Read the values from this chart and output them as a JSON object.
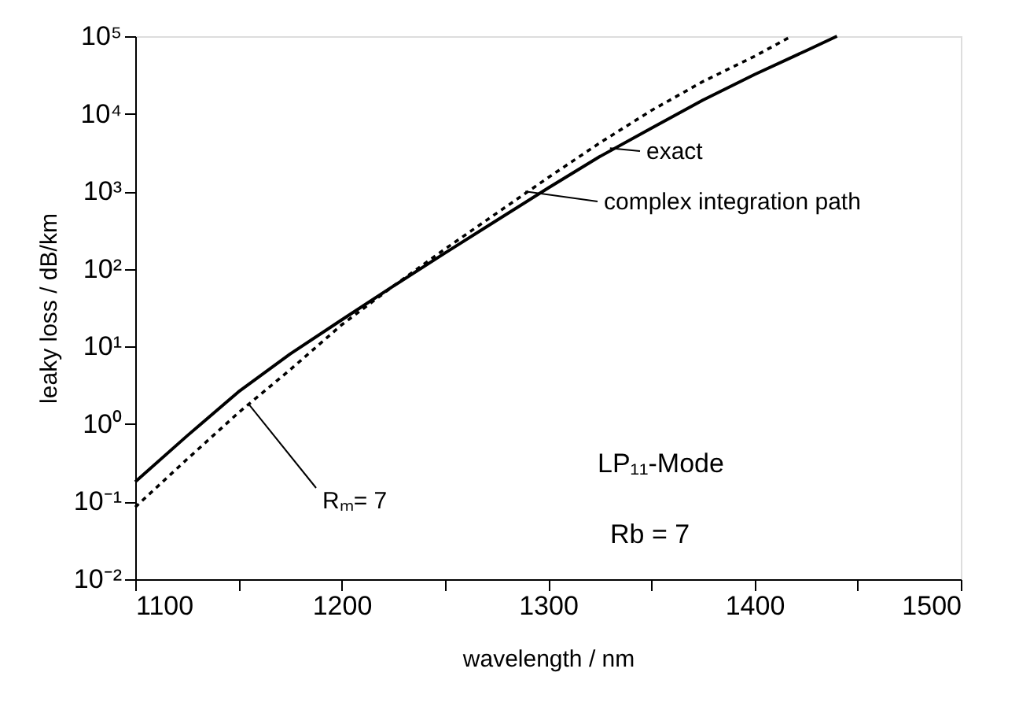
{
  "chart_data": {
    "type": "line",
    "xlabel": "wavelength  /  nm",
    "ylabel": "leaky loss  /  dB/km",
    "log": "y",
    "grid": false,
    "legend": false,
    "marker": "none",
    "xlim": [
      1100,
      1500
    ],
    "xticks": [
      1100,
      {
        "value": 1150,
        "label": null
      },
      1200,
      {
        "value": 1250,
        "label": null
      },
      1300,
      {
        "value": 1350,
        "label": null
      },
      1400,
      {
        "value": 1450,
        "label": null
      },
      1500
    ],
    "ylim": [
      0.01,
      100000
    ],
    "yticks": [
      {
        "value": 0.01,
        "label": "10⁻²"
      },
      {
        "value": 0.1,
        "label": "10⁻¹"
      },
      {
        "value": 1,
        "label": "10⁰"
      },
      {
        "value": 10,
        "label": "10¹"
      },
      {
        "value": 100,
        "label": "10²"
      },
      {
        "value": 1000,
        "label": "10³"
      },
      {
        "value": 10000,
        "label": "10⁴"
      },
      {
        "value": 100000,
        "label": "10⁵"
      }
    ],
    "series": [
      {
        "color": "#000000",
        "line_style": "solid",
        "x": [
          1100,
          1125,
          1150,
          1175,
          1200,
          1225,
          1250,
          1275,
          1300,
          1325,
          1350,
          1375,
          1400,
          1425,
          1440
        ],
        "values": [
          0.18,
          0.7,
          2.6,
          8,
          22,
          60,
          160,
          420,
          1100,
          2800,
          6500,
          15000,
          32000,
          65000,
          100000
        ]
      },
      {
        "color": "#000000",
        "line_style": "dotted",
        "x": [
          1100,
          1125,
          1150,
          1175,
          1200,
          1225,
          1250,
          1275,
          1300,
          1325,
          1350,
          1375,
          1400,
          1418
        ],
        "values": [
          0.085,
          0.35,
          1.4,
          5,
          19,
          60,
          180,
          520,
          1500,
          4200,
          11000,
          26000,
          55000,
          100000
        ]
      }
    ],
    "annotations": [
      {
        "text": "exact",
        "x": 1330,
        "y": 3600
      },
      {
        "text": "complex integration path",
        "x": 1289,
        "y": 1000
      },
      {
        "text": "Rₘ=  7",
        "x": 1155,
        "y": 1.8
      },
      "LP₁₁-Mode",
      "Rb = 7"
    ]
  }
}
